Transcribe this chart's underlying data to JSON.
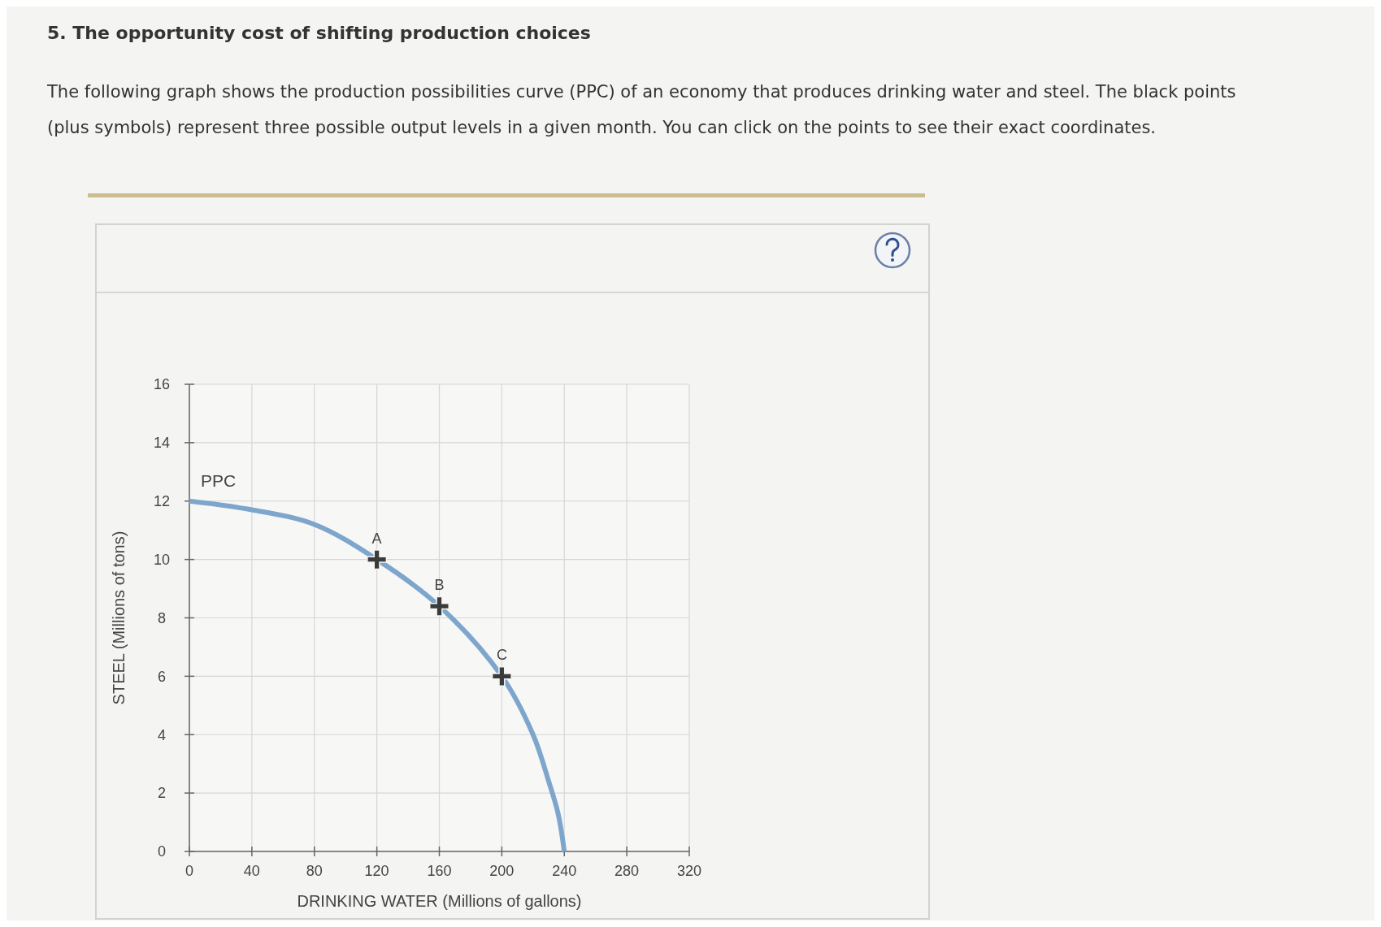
{
  "chart_data": {
    "type": "line",
    "title": "5. The opportunity cost of shifting production choices",
    "subtitle": "The following graph shows the production possibilities curve (PPC) of an economy that produces drinking water and steel. The black points (plus symbols) represent three possible output levels in a given month. You can click on the points to see their exact coordinates.",
    "xlabel": "DRINKING WATER (Millions of gallons)",
    "ylabel": "STEEL (Millions of tons)",
    "series": [
      {
        "name": "PPC",
        "color": "#7ea6cc",
        "x": [
          0,
          40,
          80,
          120,
          160,
          200,
          220,
          230,
          236,
          240
        ],
        "values": [
          12,
          11.7,
          11.2,
          10,
          8.4,
          6,
          4,
          2.4,
          1.3,
          0
        ]
      },
      {
        "type": "scatter",
        "marker": "cross",
        "color": "#3a3a3a",
        "x": [
          120,
          160,
          200
        ],
        "values": [
          10,
          8.4,
          6
        ]
      }
    ],
    "annotations": [
      {
        "text": "A",
        "x": 120,
        "y": 10
      },
      {
        "text": "B",
        "x": 160,
        "y": 8.4
      },
      {
        "text": "C",
        "x": 200,
        "y": 6
      }
    ],
    "xlim": [
      0,
      320
    ],
    "ylim": [
      0,
      16
    ],
    "xticks": [
      0,
      40,
      80,
      120,
      160,
      200,
      240,
      280,
      320
    ],
    "yticks": [
      0,
      2,
      4,
      6,
      8,
      10,
      12,
      14,
      16
    ],
    "grid": true
  }
}
